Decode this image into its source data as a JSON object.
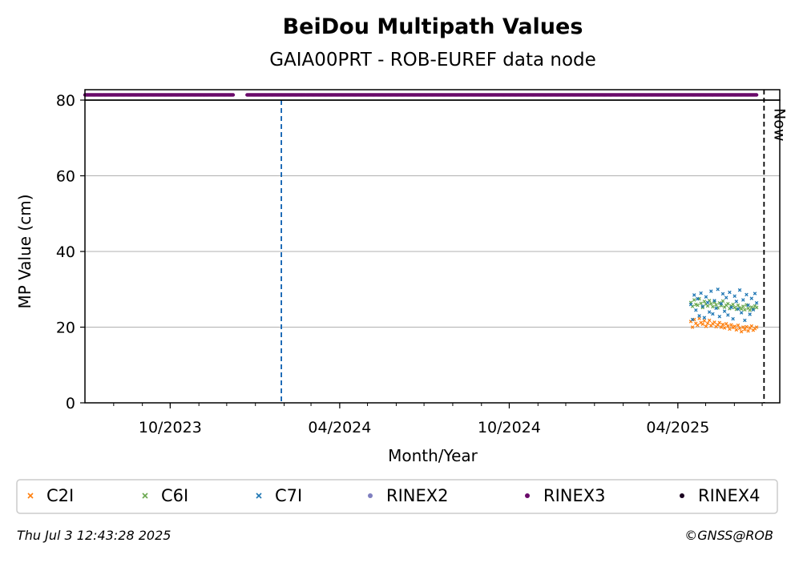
{
  "chart_data": {
    "type": "scatter",
    "title": "BeiDou Multipath Values",
    "subtitle": "GAIA00PRT - ROB-EUREF data node",
    "xlabel": "Month/Year",
    "ylabel": "MP Value (cm)",
    "xlim": [
      "2023-07-01",
      "2025-07-20"
    ],
    "ylim": [
      0,
      80
    ],
    "yticks": [
      0,
      20,
      40,
      60,
      80
    ],
    "xticks": [
      "2023-10-01",
      "2024-04-01",
      "2024-10-01",
      "2025-04-01"
    ],
    "xtick_labels": [
      "10/2023",
      "04/2024",
      "10/2024",
      "04/2025"
    ],
    "grid": "horizontal",
    "series": [
      {
        "name": "C2I",
        "color": "#ff7f0e",
        "marker": "x",
        "x_range": [
          "2025-04-15",
          "2025-06-25"
        ],
        "values": [
          21.5,
          20.0,
          22.0,
          21.0,
          20.5,
          22.3,
          21.2,
          20.8,
          21.7,
          20.2,
          21.0,
          21.8,
          20.4,
          20.9,
          21.3,
          20.1,
          20.6,
          21.2,
          20.0,
          20.7,
          19.8,
          20.9,
          20.3,
          19.5,
          20.6,
          19.9,
          20.2,
          19.3,
          20.5,
          19.7,
          18.8,
          20.0,
          19.4,
          20.1,
          19.0,
          19.8,
          20.3,
          19.2,
          19.6,
          20.0
        ]
      },
      {
        "name": "C6I",
        "color": "#6aa84f",
        "marker": "x",
        "x_range": [
          "2025-04-15",
          "2025-06-25"
        ],
        "values": [
          26.5,
          25.5,
          27.2,
          26.0,
          25.8,
          27.5,
          26.3,
          25.2,
          26.8,
          26.1,
          25.6,
          27.0,
          26.2,
          25.4,
          26.6,
          25.9,
          25.1,
          26.4,
          25.7,
          26.9,
          25.3,
          25.8,
          26.2,
          24.9,
          25.6,
          26.0,
          25.2,
          24.7,
          25.8,
          25.1,
          24.8,
          25.5,
          24.6,
          25.9,
          25.0,
          24.5,
          25.3,
          24.9,
          25.6,
          25.2
        ]
      },
      {
        "name": "C7I",
        "color": "#1f77b4",
        "marker": "x",
        "x_range": [
          "2025-04-15",
          "2025-06-25"
        ],
        "values": [
          26.0,
          22.0,
          28.5,
          24.5,
          27.5,
          23.0,
          29.0,
          25.5,
          22.5,
          28.0,
          26.5,
          24.0,
          29.5,
          23.5,
          27.0,
          25.0,
          30.0,
          22.8,
          26.2,
          28.8,
          24.2,
          27.8,
          23.2,
          29.2,
          25.2,
          22.2,
          28.2,
          26.8,
          24.8,
          29.8,
          23.8,
          27.2,
          21.8,
          28.6,
          25.8,
          23.4,
          27.6,
          24.6,
          28.9,
          26.4
        ]
      },
      {
        "name": "RINEX2",
        "color": "#7f7fbf",
        "marker": "o",
        "values": []
      },
      {
        "name": "RINEX3",
        "color": "#6a0a6a",
        "marker": "o",
        "segments": [
          [
            "2023-07-01",
            "2023-12-08"
          ],
          [
            "2023-12-23",
            "2025-06-25"
          ]
        ]
      },
      {
        "name": "RINEX4",
        "color": "#1a0020",
        "marker": "o",
        "values": []
      }
    ],
    "vlines": [
      {
        "x": "2024-01-29",
        "color": "#0b5fb0",
        "style": "dashed"
      },
      {
        "x": "2025-07-03",
        "color": "#000000",
        "style": "dashed",
        "label": "Now"
      }
    ],
    "legend": "bottom"
  },
  "footer": {
    "timestamp": "Thu Jul  3 12:43:28 2025",
    "credit": "©GNSS@ROB"
  }
}
